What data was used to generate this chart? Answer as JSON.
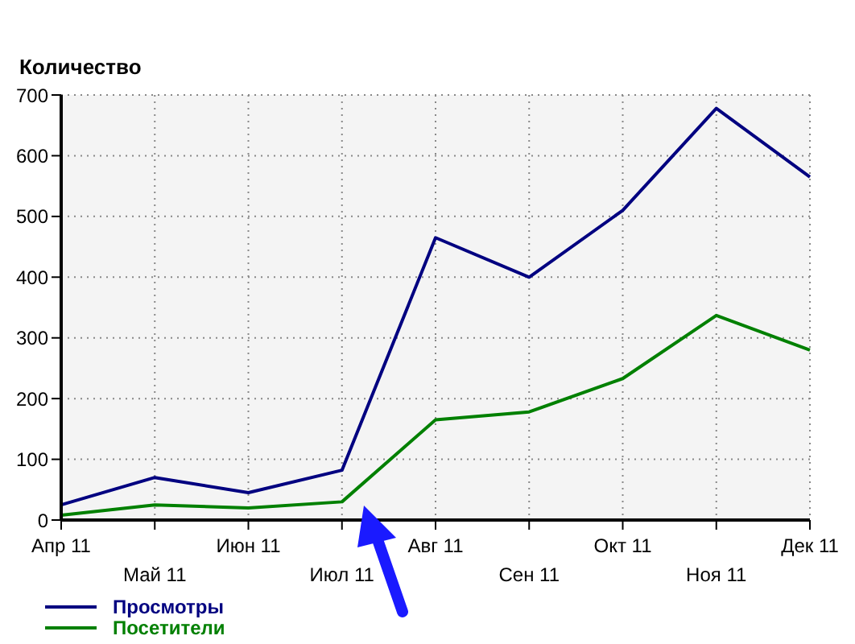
{
  "chart_data": {
    "type": "line",
    "ylabel": "Количество",
    "categories": [
      "Апр 11",
      "Май 11",
      "Июн 11",
      "Июл 11",
      "Авг 11",
      "Сен 11",
      "Окт 11",
      "Ноя 11",
      "Дек 11"
    ],
    "series": [
      {
        "name": "Просмотры",
        "color": "#000080",
        "values": [
          25,
          70,
          45,
          82,
          465,
          400,
          510,
          678,
          565
        ]
      },
      {
        "name": "Посетители",
        "color": "#008000",
        "values": [
          8,
          25,
          20,
          30,
          165,
          178,
          233,
          337,
          280
        ]
      }
    ],
    "ylim": [
      0,
      700
    ],
    "yticks": [
      0,
      100,
      200,
      300,
      400,
      500,
      600,
      700
    ],
    "grid": true,
    "legend": "bottom left",
    "marker": "none",
    "line_style": "solid"
  }
}
